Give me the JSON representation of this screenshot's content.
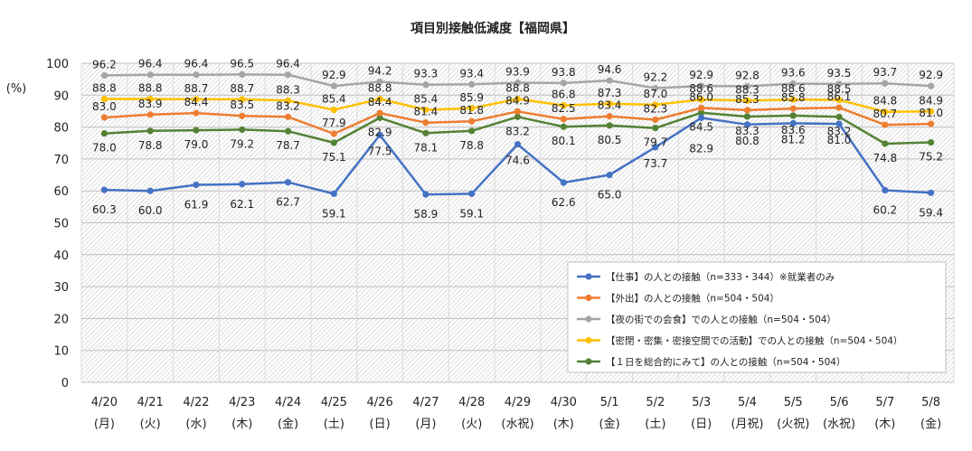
{
  "chart_data": {
    "type": "line",
    "title": "項目別接触低減度【福岡県】",
    "ylabel": "(%)",
    "xlabel": "",
    "ylim": [
      0,
      100
    ],
    "yticks": [
      0,
      10,
      20,
      30,
      40,
      50,
      60,
      70,
      80,
      90,
      100
    ],
    "grid": true,
    "legend_position": "bottom-right",
    "categories": [
      "4/20",
      "4/21",
      "4/22",
      "4/23",
      "4/24",
      "4/25",
      "4/26",
      "4/27",
      "4/28",
      "4/29",
      "4/30",
      "5/1",
      "5/2",
      "5/3",
      "5/4",
      "5/5",
      "5/6",
      "5/7",
      "5/8"
    ],
    "days": [
      "(月)",
      "(火)",
      "(水)",
      "(木)",
      "(金)",
      "(土)",
      "(日)",
      "(月)",
      "(火)",
      "(水祝)",
      "(木)",
      "(金)",
      "(土)",
      "(日)",
      "(月祝)",
      "(火祝)",
      "(水祝)",
      "(木)",
      "(金)"
    ],
    "series": [
      {
        "name": "【仕事】の人との接触（n=333・344）※就業者のみ",
        "color": "#4472C4",
        "values": [
          60.3,
          60.0,
          61.9,
          62.1,
          62.7,
          59.1,
          77.5,
          58.9,
          59.1,
          74.6,
          62.6,
          65.0,
          73.7,
          82.9,
          80.8,
          81.2,
          81.0,
          60.2,
          59.4
        ]
      },
      {
        "name": "【外出】の人との接触（n=504・504）",
        "color": "#ED7D31",
        "values": [
          83.0,
          83.9,
          84.4,
          83.5,
          83.2,
          77.9,
          84.4,
          81.4,
          81.8,
          84.9,
          82.5,
          83.4,
          82.3,
          86.0,
          85.3,
          85.8,
          86.1,
          80.7,
          81.0
        ]
      },
      {
        "name": "【夜の街での会食】での人との接触（n=504・504）",
        "color": "#A5A5A5",
        "values": [
          96.2,
          96.4,
          96.4,
          96.5,
          96.4,
          92.9,
          94.2,
          93.3,
          93.4,
          93.9,
          93.8,
          94.6,
          92.2,
          92.9,
          92.8,
          93.6,
          93.5,
          93.7,
          92.9
        ]
      },
      {
        "name": "【密閉・密集・密接空間での活動】での人との接触（n=504・504）",
        "color": "#FFC000",
        "values": [
          88.8,
          88.8,
          88.7,
          88.7,
          88.3,
          85.4,
          88.8,
          85.4,
          85.9,
          88.8,
          86.8,
          87.3,
          87.0,
          88.6,
          88.3,
          88.6,
          88.5,
          84.8,
          84.9
        ]
      },
      {
        "name": "【１日を総合的にみて】の人との接触（n=504・504）",
        "color": "#548235",
        "values": [
          78.0,
          78.8,
          79.0,
          79.2,
          78.7,
          75.1,
          82.9,
          78.1,
          78.8,
          83.2,
          80.1,
          80.5,
          79.7,
          84.5,
          83.3,
          83.6,
          83.2,
          74.8,
          75.2
        ]
      }
    ]
  }
}
